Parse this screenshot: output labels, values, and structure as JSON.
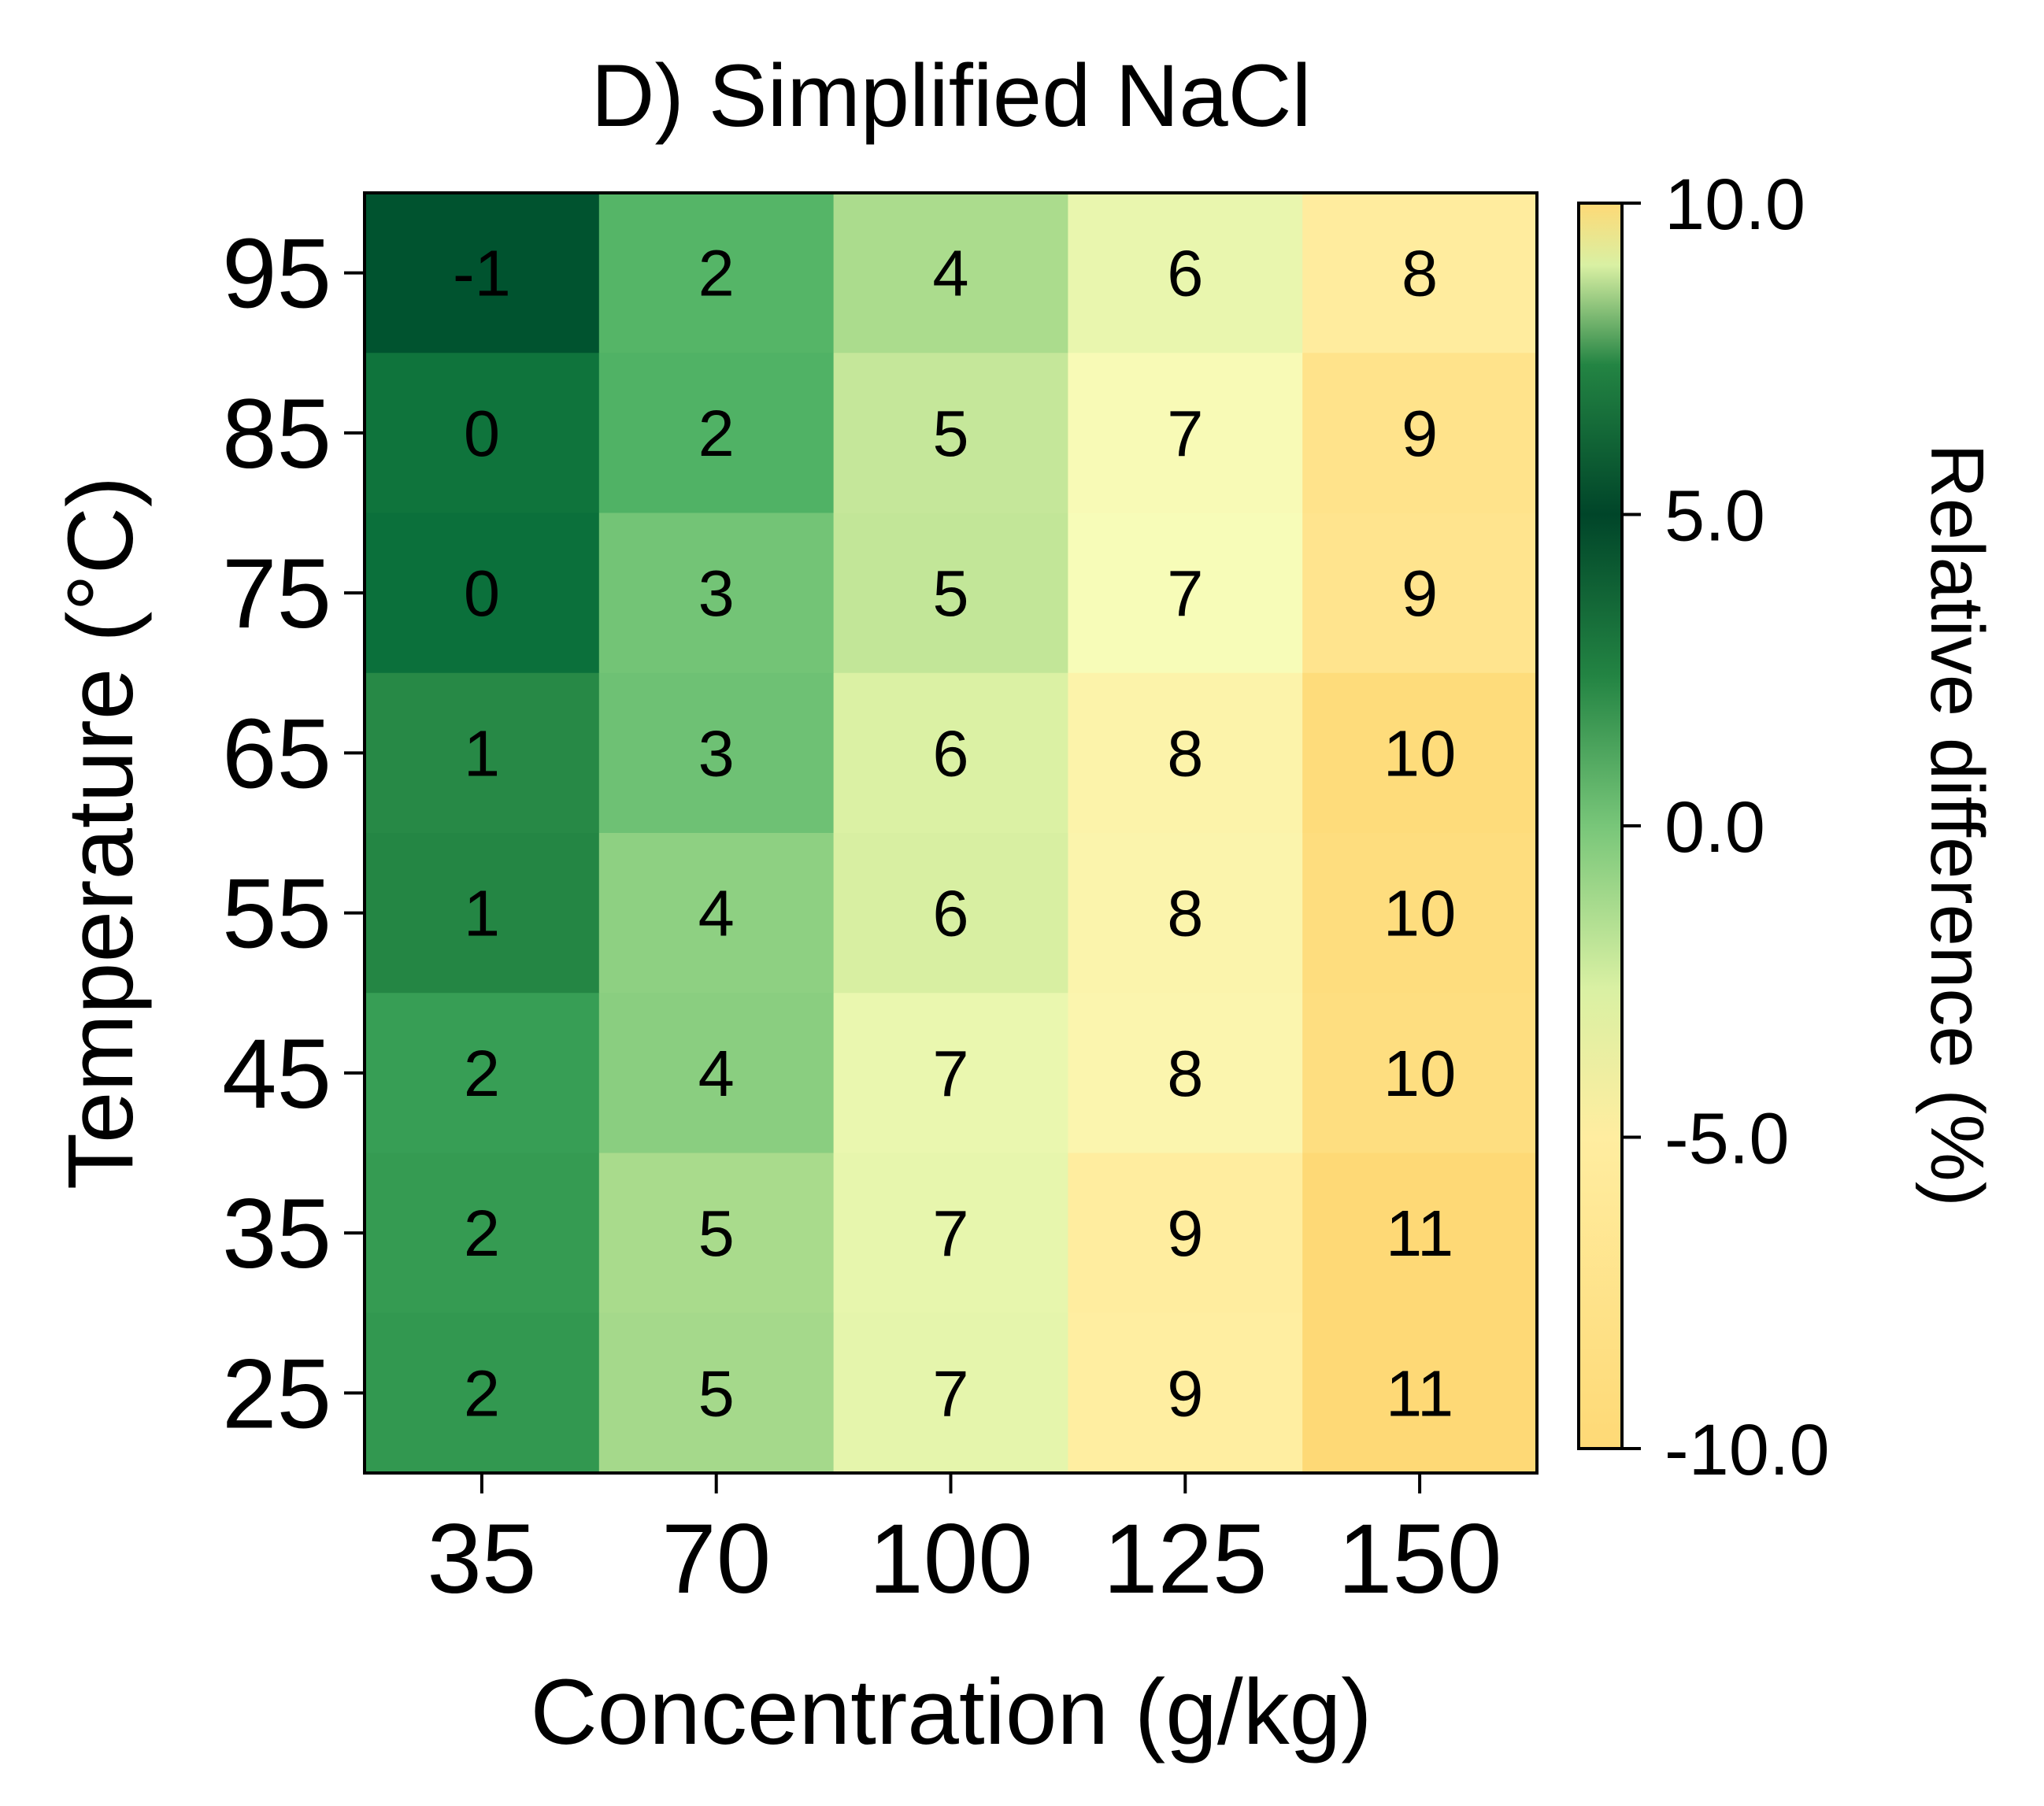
{
  "chart_data": {
    "type": "heatmap",
    "title": "D) Simplified NaCl",
    "xlabel": "Concentration (g/kg)",
    "ylabel": "Temperature (°C)",
    "x_categories": [
      "35",
      "70",
      "100",
      "125",
      "150"
    ],
    "y_categories": [
      "95",
      "85",
      "75",
      "65",
      "55",
      "45",
      "35",
      "25"
    ],
    "values": [
      [
        -1,
        2,
        4,
        6,
        8
      ],
      [
        0,
        2,
        5,
        7,
        9
      ],
      [
        0,
        3,
        5,
        7,
        9
      ],
      [
        1,
        3,
        6,
        8,
        10
      ],
      [
        1,
        4,
        6,
        8,
        10
      ],
      [
        2,
        4,
        7,
        8,
        10
      ],
      [
        2,
        5,
        7,
        9,
        11
      ],
      [
        2,
        5,
        7,
        9,
        11
      ]
    ],
    "colorbar": {
      "label": "Relative difference (%)",
      "range": [
        -10.0,
        10.0
      ],
      "ticks": [
        "10.0",
        "5.0",
        "0.0",
        "-5.0",
        "-10.0"
      ],
      "tick_values": [
        10.0,
        5.0,
        0.0,
        -5.0,
        -10.0
      ],
      "colormap": "YlGn_r"
    },
    "grid": false
  }
}
